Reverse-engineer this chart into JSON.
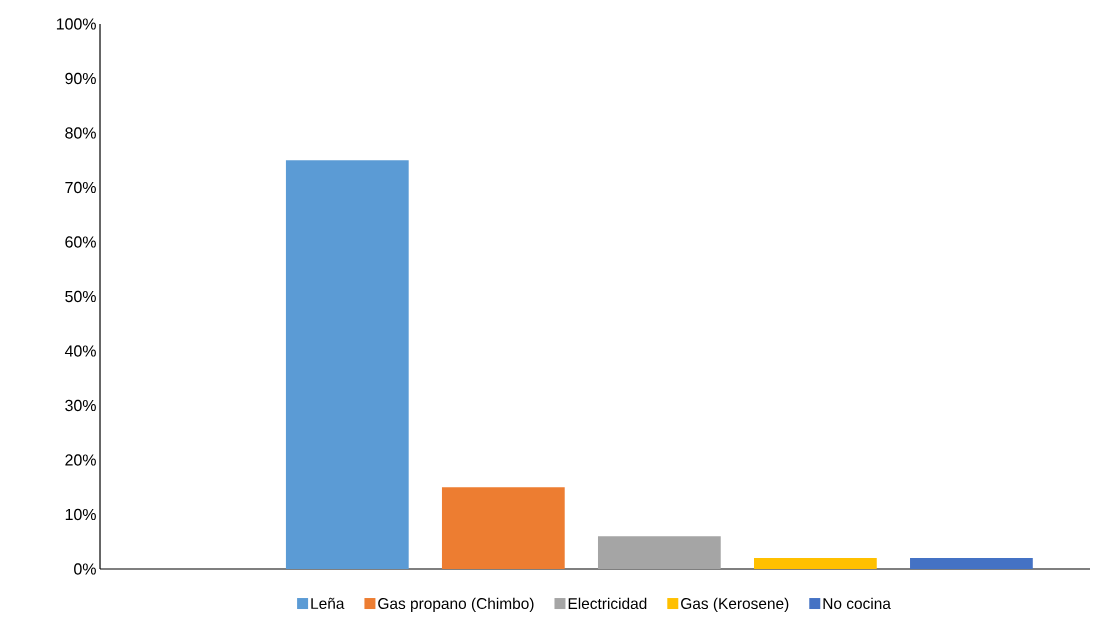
{
  "chart_data": {
    "type": "bar",
    "categories": [
      null
    ],
    "series": [
      {
        "name": "Leña",
        "color": "#5b9bd5",
        "values": [
          75
        ]
      },
      {
        "name": "Gas propano (Chimbo)",
        "color": "#ed7d31",
        "values": [
          15
        ]
      },
      {
        "name": "Electricidad",
        "color": "#a5a5a5",
        "values": [
          6
        ]
      },
      {
        "name": "Gas (Kerosene)",
        "color": "#ffc000",
        "values": [
          2
        ]
      },
      {
        "name": "No cocina",
        "color": "#4472c4",
        "values": [
          2
        ]
      }
    ],
    "ylim": [
      0,
      100
    ],
    "yticks": [
      {
        "value": 0,
        "label": "0%"
      },
      {
        "value": 10,
        "label": "10%"
      },
      {
        "value": 20,
        "label": "20%"
      },
      {
        "value": 30,
        "label": "30%"
      },
      {
        "value": 40,
        "label": "40%"
      },
      {
        "value": 50,
        "label": "50%"
      },
      {
        "value": 60,
        "label": "60%"
      },
      {
        "value": 70,
        "label": "70%"
      },
      {
        "value": 80,
        "label": "80%"
      },
      {
        "value": 90,
        "label": "90%"
      },
      {
        "value": 100,
        "label": "100%"
      }
    ],
    "legend": "bottom"
  }
}
